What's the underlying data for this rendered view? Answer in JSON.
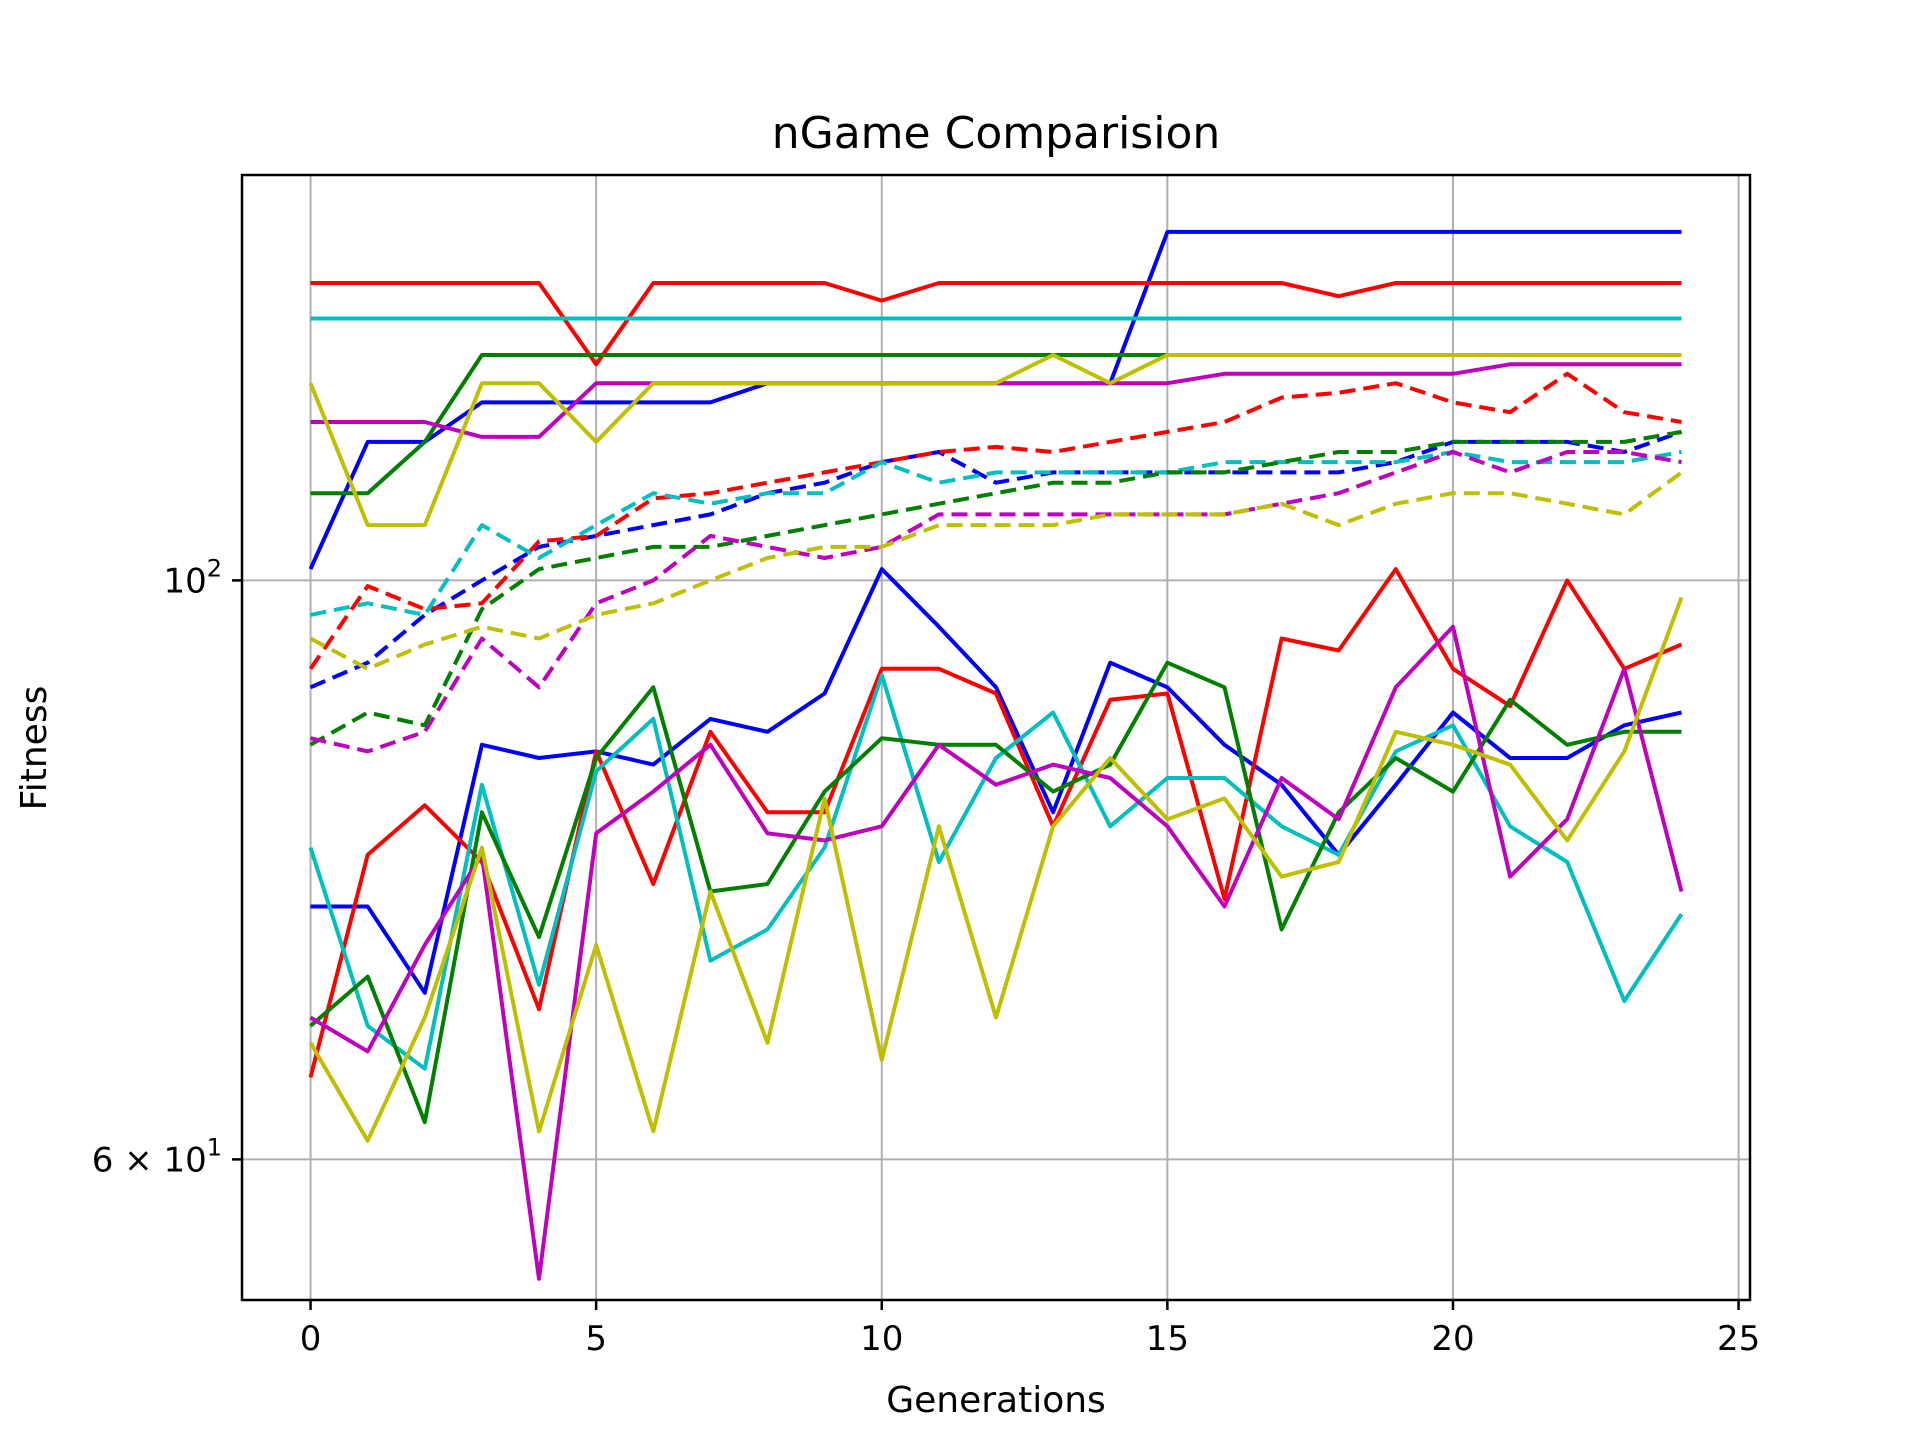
{
  "chart_data": {
    "type": "line",
    "title": "nGame Comparision",
    "xlabel": "Generations",
    "ylabel": "Fitness",
    "xlim": [
      -1.2,
      25.2
    ],
    "ylim": [
      53,
      143
    ],
    "yscale": "log",
    "grid": true,
    "x": [
      0,
      1,
      2,
      3,
      4,
      5,
      6,
      7,
      8,
      9,
      10,
      11,
      12,
      13,
      14,
      15,
      16,
      17,
      18,
      19,
      20,
      21,
      22,
      23,
      24
    ],
    "x_ticks": [
      0,
      5,
      10,
      15,
      20,
      25
    ],
    "x_tick_labels": [
      "0",
      "5",
      "10",
      "15",
      "20",
      "25"
    ],
    "y_ticks": [
      {
        "value": 100,
        "base": "10",
        "exp": "2",
        "prefix": ""
      },
      {
        "value": 60,
        "base": "10",
        "exp": "1",
        "prefix": "6 × "
      }
    ],
    "series": [
      {
        "color": "#0000ff",
        "style": "solid",
        "role": "max",
        "values": [
          101,
          113,
          113,
          117,
          117,
          117,
          117,
          117,
          119,
          119,
          119,
          119,
          119,
          119,
          119,
          136,
          136,
          136,
          136,
          136,
          136,
          136,
          136,
          136,
          136
        ]
      },
      {
        "color": "#0000ff",
        "style": "dashed",
        "role": "mean",
        "values": [
          91,
          93,
          97,
          100,
          103,
          104,
          105,
          106,
          108,
          109,
          111,
          112,
          109,
          110,
          110,
          110,
          110,
          110,
          110,
          111,
          113,
          113,
          113,
          112,
          114
        ]
      },
      {
        "color": "#0000ff",
        "style": "solid",
        "role": "min",
        "values": [
          75,
          75,
          69.5,
          86.5,
          85.5,
          86,
          85,
          88.5,
          87.5,
          90.5,
          101,
          96,
          91,
          81.5,
          93,
          91,
          86.5,
          83.5,
          78.5,
          83.5,
          89,
          85.5,
          85.5,
          88,
          89
        ]
      },
      {
        "color": "#ff0000",
        "style": "solid",
        "role": "max",
        "values": [
          130,
          130,
          130,
          130,
          130,
          121,
          130,
          130,
          130,
          130,
          128,
          130,
          130,
          130,
          130,
          130,
          130,
          130,
          128.5,
          130,
          130,
          130,
          130,
          130,
          130
        ]
      },
      {
        "color": "#ff0000",
        "style": "dashed",
        "role": "mean",
        "values": [
          92.5,
          99.5,
          97.5,
          98,
          103.5,
          104,
          107.5,
          108,
          109,
          110,
          111,
          112,
          112.5,
          112,
          113,
          114,
          115,
          117.5,
          118,
          119,
          117,
          116,
          120,
          116,
          115
        ]
      },
      {
        "color": "#ff0000",
        "style": "solid",
        "role": "min",
        "values": [
          64.5,
          78.5,
          82,
          78,
          68.5,
          86,
          76.5,
          87.5,
          81.5,
          81.5,
          92.5,
          92.5,
          90.5,
          80.5,
          90,
          90.5,
          75.5,
          95,
          94,
          101,
          92.5,
          89.5,
          100,
          92.5,
          94.5
        ]
      },
      {
        "color": "#00bfbf",
        "style": "solid",
        "role": "max",
        "values": [
          126,
          126,
          126,
          126,
          126,
          126,
          126,
          126,
          126,
          126,
          126,
          126,
          126,
          126,
          126,
          126,
          126,
          126,
          126,
          126,
          126,
          126,
          126,
          126,
          126
        ]
      },
      {
        "color": "#00bfbf",
        "style": "dashed",
        "role": "mean",
        "values": [
          97,
          98,
          97,
          105,
          102,
          105,
          108,
          107,
          108,
          108,
          111,
          109,
          110,
          110,
          110,
          110,
          111,
          111,
          111,
          111,
          112,
          111,
          111,
          111,
          112
        ]
      },
      {
        "color": "#00bfbf",
        "style": "solid",
        "role": "min",
        "values": [
          79,
          67.5,
          65,
          83.5,
          70,
          84.5,
          88.5,
          71.5,
          73.5,
          79,
          92,
          78,
          85.5,
          89,
          80.5,
          84,
          84,
          80.5,
          78.5,
          86,
          88,
          80.5,
          78,
          69,
          74.5
        ]
      },
      {
        "color": "#007f00",
        "style": "solid",
        "role": "max",
        "values": [
          108,
          108,
          113,
          122,
          122,
          122,
          122,
          122,
          122,
          122,
          122,
          122,
          122,
          122,
          122,
          122,
          122,
          122,
          122,
          122,
          122,
          122,
          122,
          122,
          122
        ]
      },
      {
        "color": "#007f00",
        "style": "dashed",
        "role": "mean",
        "values": [
          86.5,
          89,
          88,
          97.5,
          101,
          102,
          103,
          103,
          104,
          105,
          106,
          107,
          108,
          109,
          109,
          110,
          110,
          111,
          112,
          112,
          113,
          113,
          113,
          113,
          114
        ]
      },
      {
        "color": "#007f00",
        "style": "solid",
        "role": "min",
        "values": [
          67.5,
          70.5,
          62,
          81.5,
          73,
          85.5,
          91,
          76,
          76.5,
          83,
          87,
          86.5,
          86.5,
          83,
          85,
          93,
          91,
          73.5,
          81.5,
          85.5,
          83,
          90,
          86.5,
          87.5,
          87.5
        ]
      },
      {
        "color": "#bf00bf",
        "style": "solid",
        "role": "max",
        "values": [
          115,
          115,
          115,
          113.5,
          113.5,
          119,
          119,
          119,
          119,
          119,
          119,
          119,
          119,
          119,
          119,
          119,
          120,
          120,
          120,
          120,
          120,
          121,
          121,
          121,
          121
        ]
      },
      {
        "color": "#bf00bf",
        "style": "dashed",
        "role": "mean",
        "values": [
          87,
          86,
          87.5,
          95,
          91,
          98,
          100,
          104,
          103,
          102,
          103,
          106,
          106,
          106,
          106,
          106,
          106,
          107,
          108,
          110,
          112,
          110,
          112,
          112,
          111
        ]
      },
      {
        "color": "#bf00bf",
        "style": "solid",
        "role": "min",
        "values": [
          68,
          66,
          72.5,
          78.5,
          54,
          80,
          83,
          86.5,
          80,
          79.5,
          80.5,
          86.5,
          83.5,
          85,
          84,
          80.5,
          75,
          84,
          81,
          91,
          96,
          77,
          81,
          92.5,
          76
        ]
      },
      {
        "color": "#bfbf00",
        "style": "solid",
        "role": "max",
        "values": [
          119,
          105,
          105,
          119,
          119,
          113,
          119,
          119,
          119,
          119,
          119,
          119,
          119,
          122,
          119,
          122,
          122,
          122,
          122,
          122,
          122,
          122,
          122,
          122,
          122
        ]
      },
      {
        "color": "#bfbf00",
        "style": "dashed",
        "role": "mean",
        "values": [
          95,
          92.5,
          94.5,
          96,
          95,
          97,
          98,
          100,
          102,
          103,
          103,
          105,
          105,
          105,
          106,
          106,
          106,
          107,
          105,
          107,
          108,
          108,
          107,
          106,
          110
        ]
      },
      {
        "color": "#bfbf00",
        "style": "solid",
        "role": "min",
        "values": [
          66.5,
          61,
          68,
          79,
          61.5,
          72.5,
          61.5,
          76,
          66.5,
          82.5,
          65.5,
          80.5,
          68,
          80.5,
          85.5,
          81,
          82.5,
          77,
          78,
          87.5,
          86.5,
          85,
          79.5,
          86,
          98.5
        ]
      }
    ]
  }
}
